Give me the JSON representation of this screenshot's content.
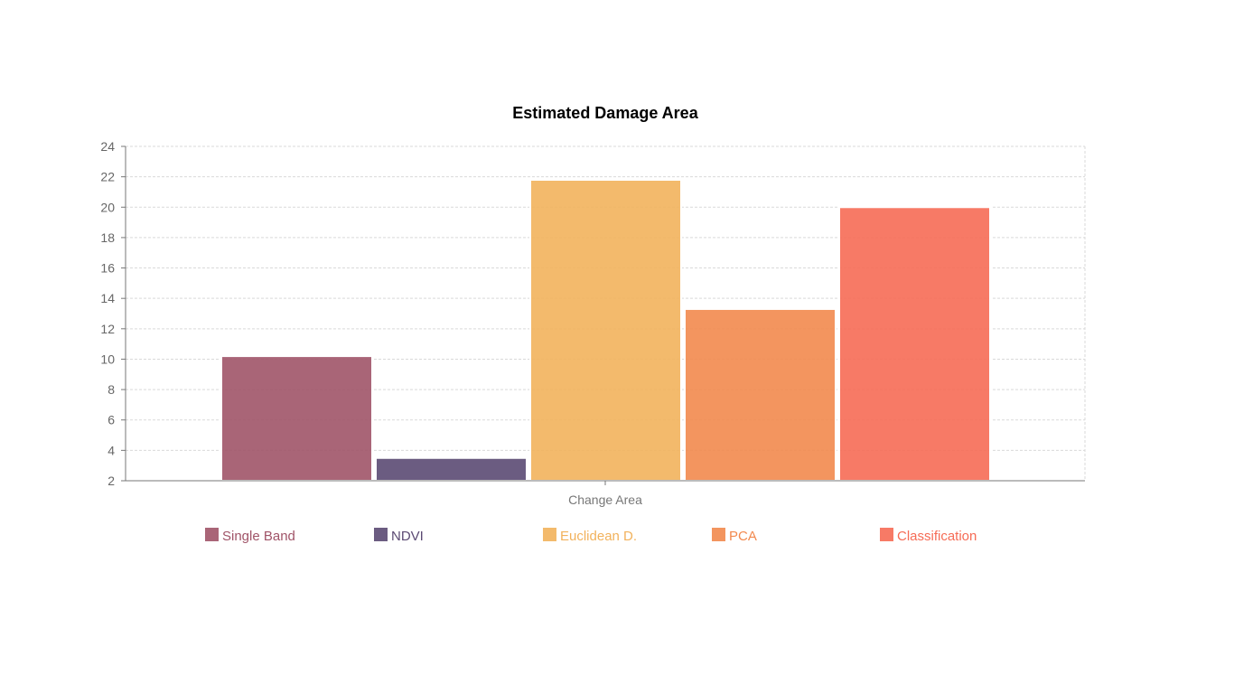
{
  "chart_data": {
    "type": "bar",
    "title": "Estimated Damage Area",
    "xlabel": "Change Area",
    "ylabel": "",
    "categories": [
      "Change Area"
    ],
    "ylim": [
      2,
      24
    ],
    "yticks": [
      2,
      4,
      6,
      8,
      10,
      12,
      14,
      16,
      18,
      20,
      22,
      24
    ],
    "grid": true,
    "legend_position": "bottom",
    "series": [
      {
        "name": "Single Band",
        "values": [
          10.2
        ],
        "color": "#a05468"
      },
      {
        "name": "NDVI",
        "values": [
          3.5
        ],
        "color": "#5b4a73"
      },
      {
        "name": "Euclidean D.",
        "values": [
          21.8
        ],
        "color": "#f2b25c"
      },
      {
        "name": "PCA",
        "values": [
          13.3
        ],
        "color": "#f2894e"
      },
      {
        "name": "Classification",
        "values": [
          20.0
        ],
        "color": "#f66b55"
      }
    ]
  }
}
